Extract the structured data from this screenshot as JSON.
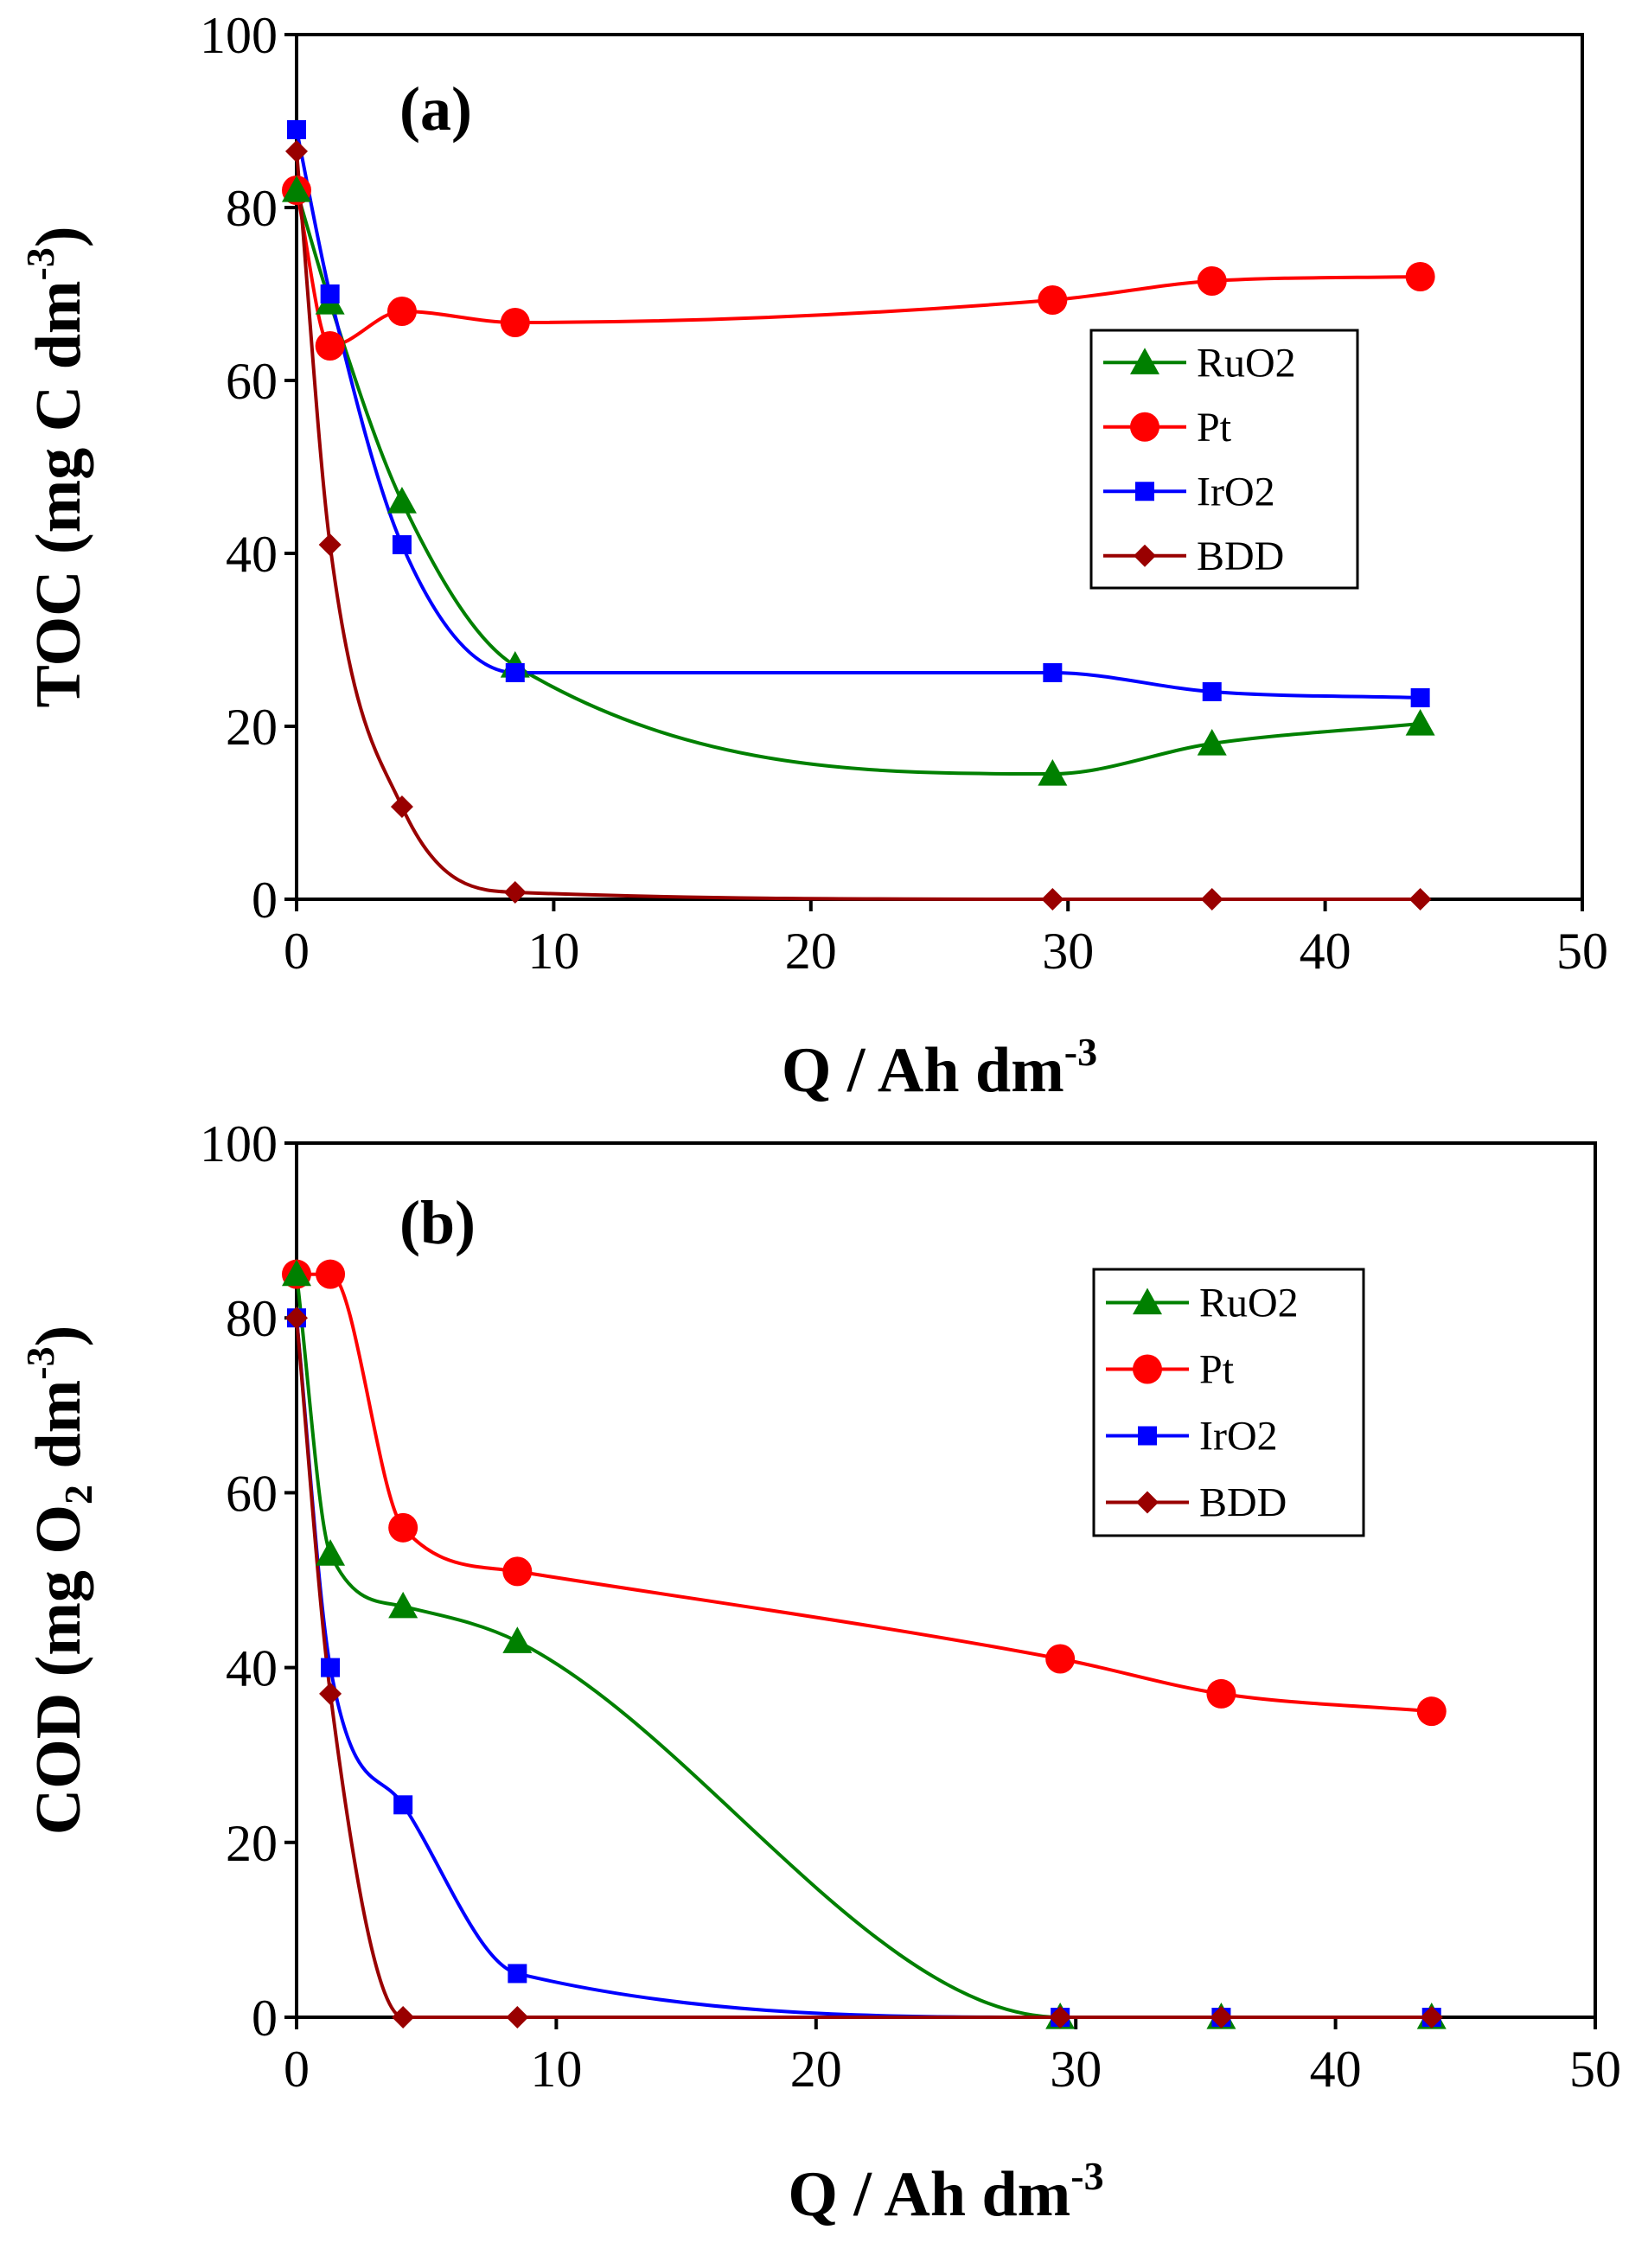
{
  "chart_data": [
    {
      "type": "line",
      "panel_label": "(a)",
      "ylabel": {
        "main": "TOC (mg C dm",
        "sup": "-3",
        "close": ")"
      },
      "xlabel": {
        "main": "Q / Ah dm",
        "sup": "-3"
      },
      "xlim": [
        0,
        50
      ],
      "ylim": [
        0,
        100
      ],
      "xticks": [
        "0",
        "10",
        "20",
        "30",
        "40",
        "50"
      ],
      "yticks": [
        "0",
        "20",
        "40",
        "60",
        "80",
        "100"
      ],
      "grid": false,
      "legend_position": "right",
      "series": [
        {
          "name": "RuO2",
          "color": "#008000",
          "marker": "triangle",
          "x": [
            0,
            1.3,
            4.1,
            8.5,
            29.4,
            35.6,
            43.7
          ],
          "y": [
            82,
            69,
            46,
            27,
            14.5,
            18,
            20.3
          ]
        },
        {
          "name": "Pt",
          "color": "#ff0000",
          "marker": "circle",
          "x": [
            0,
            1.3,
            4.1,
            8.5,
            29.4,
            35.6,
            43.7
          ],
          "y": [
            82,
            64,
            68,
            66.7,
            69.3,
            71.5,
            72
          ]
        },
        {
          "name": "IrO2",
          "color": "#0000ff",
          "marker": "square",
          "x": [
            0,
            1.3,
            4.1,
            8.5,
            29.4,
            35.6,
            43.7
          ],
          "y": [
            89,
            70,
            41,
            26.2,
            26.2,
            24,
            23.3
          ]
        },
        {
          "name": "BDD",
          "color": "#990000",
          "marker": "diamond",
          "x": [
            0,
            1.3,
            4.1,
            8.5,
            29.4,
            35.6,
            43.7
          ],
          "y": [
            86.5,
            41,
            10.7,
            0.8,
            0,
            0,
            0
          ]
        }
      ]
    },
    {
      "type": "line",
      "panel_label": "(b)",
      "ylabel": {
        "main": "COD (mg O",
        "sub": "2",
        "mid": " dm",
        "sup": "-3",
        "close": ")"
      },
      "xlabel": {
        "main": "Q / Ah dm",
        "sup": "-3"
      },
      "xlim": [
        0,
        50
      ],
      "ylim": [
        0,
        100
      ],
      "xticks": [
        "0",
        "10",
        "20",
        "30",
        "40",
        "50"
      ],
      "yticks": [
        "0",
        "20",
        "40",
        "60",
        "80",
        "100"
      ],
      "grid": false,
      "legend_position": "right",
      "series": [
        {
          "name": "RuO2",
          "color": "#008000",
          "marker": "triangle",
          "x": [
            0,
            1.3,
            4.1,
            8.5,
            29.4,
            35.6,
            43.7
          ],
          "y": [
            85,
            53,
            47,
            43,
            0,
            0,
            0
          ]
        },
        {
          "name": "Pt",
          "color": "#ff0000",
          "marker": "circle",
          "x": [
            0,
            1.3,
            4.1,
            8.5,
            29.4,
            35.6,
            43.7
          ],
          "y": [
            85,
            85,
            56,
            51,
            41,
            37,
            35
          ]
        },
        {
          "name": "IrO2",
          "color": "#0000ff",
          "marker": "square",
          "x": [
            0,
            1.3,
            4.1,
            8.5,
            29.4,
            35.6,
            43.7
          ],
          "y": [
            80,
            40,
            24.3,
            5,
            0,
            0,
            0
          ]
        },
        {
          "name": "BDD",
          "color": "#990000",
          "marker": "diamond",
          "x": [
            0,
            1.3,
            4.1,
            8.5,
            29.4,
            35.6,
            43.7
          ],
          "y": [
            80,
            37,
            0,
            0,
            0,
            0,
            0
          ]
        }
      ]
    }
  ]
}
